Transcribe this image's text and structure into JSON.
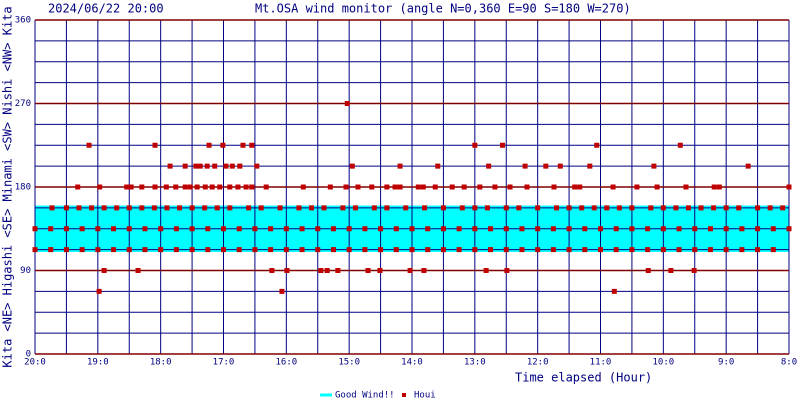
{
  "chart_data": {
    "type": "scatter",
    "date": "2024/06/22 20:00",
    "title": "Mt.OSA wind monitor (angle N=0,360 E=90 S=180 W=270)",
    "y_side_label": "Kita <NE> Higashi <SE> Minami <SW> Nishi <NW> Kita",
    "xlabel": "Time elapsed (Hour)",
    "xlim": [
      0,
      12
    ],
    "xticks": [
      {
        "value": 0,
        "label": "20:0"
      },
      {
        "value": 1,
        "label": "19:0"
      },
      {
        "value": 2,
        "label": "18:0"
      },
      {
        "value": 3,
        "label": "17:0"
      },
      {
        "value": 4,
        "label": "16:0"
      },
      {
        "value": 5,
        "label": "15:0"
      },
      {
        "value": 6,
        "label": "14:0"
      },
      {
        "value": 7,
        "label": "13:0"
      },
      {
        "value": 8,
        "label": "12:0"
      },
      {
        "value": 9,
        "label": "11:0"
      },
      {
        "value": 10,
        "label": "10:0"
      },
      {
        "value": 11,
        "label": "9:0"
      },
      {
        "value": 12,
        "label": "8:0"
      }
    ],
    "x_minor_grid": [
      0.5,
      1.5,
      2.5,
      3.5,
      4.5,
      5.5,
      6.5,
      7.5,
      8.5,
      9.5,
      10.5,
      11.5
    ],
    "ylim": [
      0,
      360
    ],
    "yticks": [
      0,
      90,
      180,
      270,
      360
    ],
    "y_minor_grid": [
      22.5,
      45,
      67.5,
      112.5,
      135,
      157.5,
      202.5,
      225,
      247.5,
      292.5,
      315,
      337.5
    ],
    "grid": true,
    "band": {
      "name": "Good Wind!!",
      "range": [
        110,
        160
      ],
      "color": "#00ffff"
    },
    "series": [
      {
        "name": "Houi",
        "color": "#c00000",
        "x": [
          0.86,
          1.91,
          2.77,
          2.99,
          3.31,
          3.45,
          7.0,
          7.44,
          8.94,
          10.27,
          4.97,
          1.02,
          3.93,
          9.22,
          1.1,
          1.64,
          3.77,
          4.01,
          4.55,
          4.65,
          4.82,
          5.3,
          5.49,
          5.97,
          6.19,
          7.18,
          7.51,
          9.76,
          10.12,
          10.49,
          2.15,
          2.39,
          2.56,
          2.63,
          2.74,
          2.86,
          3.04,
          3.14,
          3.26,
          3.53,
          5.05,
          5.81,
          6.41,
          7.22,
          7.8,
          8.13,
          8.36,
          8.83,
          9.85,
          11.35,
          0.68,
          1.03,
          1.46,
          1.53,
          1.7,
          1.91,
          2.09,
          2.24,
          2.39,
          2.47,
          2.58,
          2.71,
          2.82,
          2.94,
          3.1,
          3.23,
          3.36,
          3.45,
          3.68,
          4.27,
          4.7,
          4.95,
          5.14,
          5.36,
          5.6,
          5.73,
          5.81,
          6.1,
          6.18,
          6.37,
          6.64,
          6.83,
          7.08,
          7.32,
          7.56,
          7.83,
          8.26,
          8.59,
          8.67,
          9.2,
          9.58,
          9.9,
          10.36,
          10.81,
          10.89,
          12.0,
          0.27,
          0.5,
          0.7,
          0.9,
          1.1,
          1.3,
          1.5,
          1.7,
          1.9,
          2.1,
          2.3,
          2.5,
          2.7,
          2.9,
          3.1,
          3.4,
          3.6,
          3.9,
          4.2,
          4.4,
          4.6,
          4.9,
          5.1,
          5.4,
          5.6,
          5.9,
          6.2,
          6.5,
          6.8,
          7.0,
          7.2,
          7.5,
          7.7,
          8.0,
          8.3,
          8.5,
          8.7,
          8.9,
          9.1,
          9.3,
          9.5,
          9.8,
          10.0,
          10.2,
          10.4,
          10.6,
          10.8,
          11.0,
          11.2,
          11.5,
          11.7,
          11.9,
          0,
          0.25,
          0.5,
          0.75,
          1,
          1.25,
          1.5,
          1.75,
          2,
          2.25,
          2.5,
          2.75,
          3,
          3.25,
          3.5,
          3.75,
          4,
          4.25,
          4.5,
          4.75,
          5,
          5.25,
          5.5,
          5.75,
          6,
          6.25,
          6.5,
          6.75,
          7,
          7.25,
          7.5,
          7.75,
          8,
          8.25,
          8.5,
          8.75,
          9,
          9.25,
          9.5,
          9.75,
          10,
          10.25,
          10.5,
          10.75,
          11,
          11.25,
          11.5,
          11.75,
          12,
          0,
          0.25,
          0.5,
          0.75,
          1,
          1.25,
          1.5,
          1.75,
          2,
          2.25,
          2.5,
          2.75,
          3,
          3.25,
          3.5,
          3.75,
          4,
          4.25,
          4.5,
          4.75,
          5,
          5.25,
          5.5,
          5.75,
          6,
          6.25,
          6.5,
          6.75,
          7,
          7.25,
          7.5,
          7.75,
          8,
          8.25,
          8.5,
          8.75,
          9,
          9.25,
          9.5,
          9.75,
          10,
          10.25,
          10.5,
          10.75,
          11,
          11.25,
          11.5,
          11.75
        ],
        "values": [
          225,
          225,
          225,
          225,
          225,
          225,
          225,
          225,
          225,
          225,
          270,
          67.5,
          67.5,
          67.5,
          90,
          90,
          90,
          90,
          90,
          90,
          90,
          90,
          90,
          90,
          90,
          90,
          90,
          90,
          90,
          90,
          202.5,
          202.5,
          202.5,
          202.5,
          202.5,
          202.5,
          202.5,
          202.5,
          202.5,
          202.5,
          202.5,
          202.5,
          202.5,
          202.5,
          202.5,
          202.5,
          202.5,
          202.5,
          202.5,
          202.5,
          180,
          180,
          180,
          180,
          180,
          180,
          180,
          180,
          180,
          180,
          180,
          180,
          180,
          180,
          180,
          180,
          180,
          180,
          180,
          180,
          180,
          180,
          180,
          180,
          180,
          180,
          180,
          180,
          180,
          180,
          180,
          180,
          180,
          180,
          180,
          180,
          180,
          180,
          180,
          180,
          180,
          180,
          180,
          180,
          180,
          180,
          157.5,
          157.5,
          157.5,
          157.5,
          157.5,
          157.5,
          157.5,
          157.5,
          157.5,
          157.5,
          157.5,
          157.5,
          157.5,
          157.5,
          157.5,
          157.5,
          157.5,
          157.5,
          157.5,
          157.5,
          157.5,
          157.5,
          157.5,
          157.5,
          157.5,
          157.5,
          157.5,
          157.5,
          157.5,
          157.5,
          157.5,
          157.5,
          157.5,
          157.5,
          157.5,
          157.5,
          157.5,
          157.5,
          157.5,
          157.5,
          157.5,
          157.5,
          157.5,
          157.5,
          157.5,
          157.5,
          157.5,
          157.5,
          157.5,
          157.5,
          157.5,
          157.5,
          135,
          135,
          135,
          135,
          135,
          135,
          135,
          135,
          135,
          135,
          135,
          135,
          135,
          135,
          135,
          135,
          135,
          135,
          135,
          135,
          135,
          135,
          135,
          135,
          135,
          135,
          135,
          135,
          135,
          135,
          135,
          135,
          135,
          135,
          135,
          135,
          135,
          135,
          135,
          135,
          135,
          135,
          135,
          135,
          135,
          135,
          135,
          135,
          135,
          112.5,
          112.5,
          112.5,
          112.5,
          112.5,
          112.5,
          112.5,
          112.5,
          112.5,
          112.5,
          112.5,
          112.5,
          112.5,
          112.5,
          112.5,
          112.5,
          112.5,
          112.5,
          112.5,
          112.5,
          112.5,
          112.5,
          112.5,
          112.5,
          112.5,
          112.5,
          112.5,
          112.5,
          112.5,
          112.5,
          112.5,
          112.5,
          112.5,
          112.5,
          112.5,
          112.5,
          112.5,
          112.5,
          112.5,
          112.5,
          112.5,
          112.5,
          112.5,
          112.5,
          112.5,
          112.5,
          112.5,
          112.5
        ]
      }
    ]
  }
}
